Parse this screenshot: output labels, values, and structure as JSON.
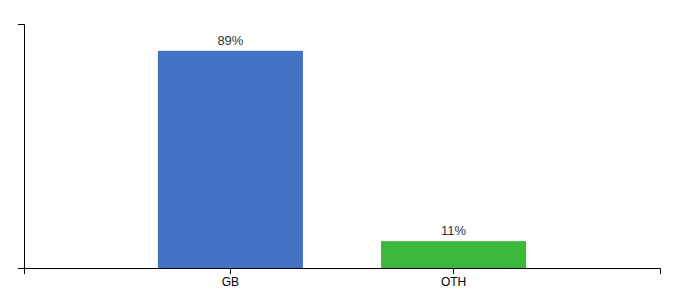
{
  "chart_data": {
    "type": "bar",
    "categories": [
      "GB",
      "OTH"
    ],
    "values": [
      89,
      11
    ],
    "value_labels": [
      "89%",
      "11%"
    ],
    "data_labels": true,
    "colors": [
      "#4472c4",
      "#3cb93c"
    ],
    "ylim": [
      0,
      100
    ],
    "yticks": [],
    "tick_labels": "x"
  }
}
